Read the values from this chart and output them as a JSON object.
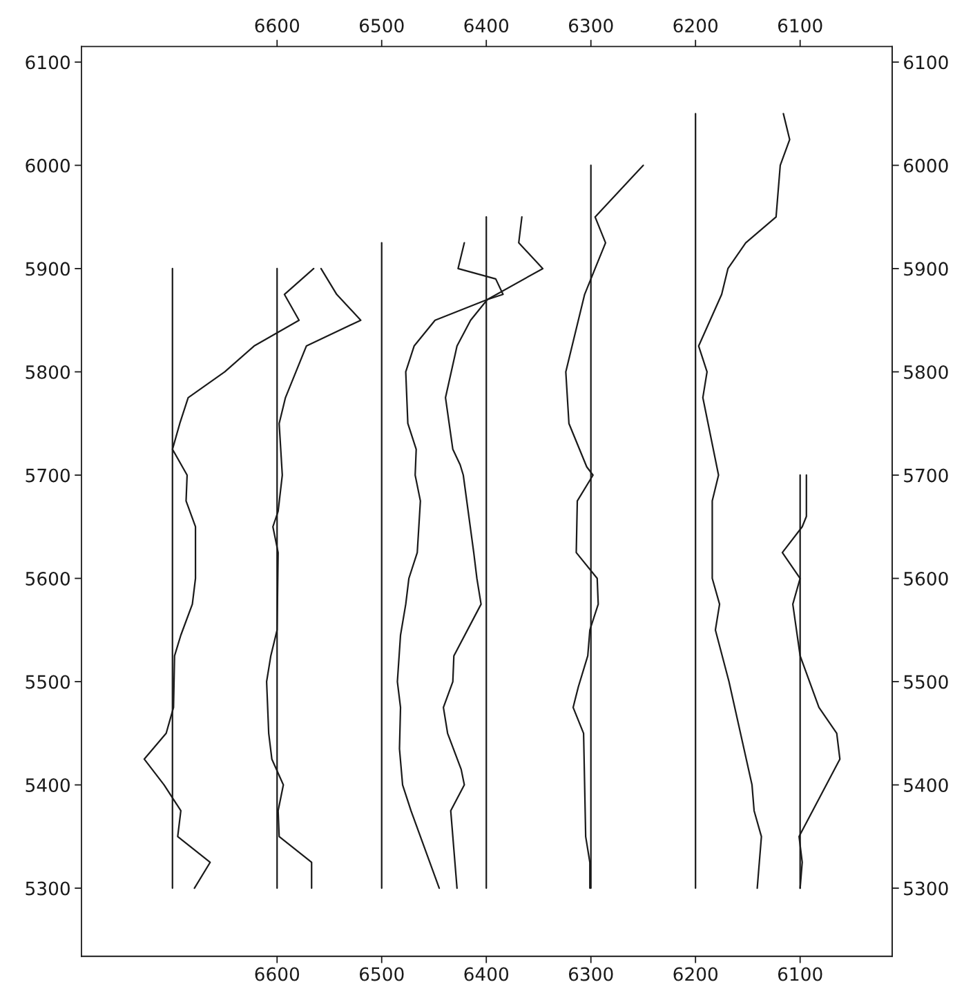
{
  "chart_data": {
    "type": "line",
    "orientation": "horizontal",
    "xlim": [
      6787,
      6012
    ],
    "xticks": [
      6600,
      6500,
      6400,
      6300,
      6200,
      6100
    ],
    "x2lim": [
      6787,
      6012
    ],
    "x2ticks": [
      6600,
      6500,
      6400,
      6300,
      6200,
      6100
    ],
    "ylim": [
      5234,
      6115
    ],
    "yticks": [
      5300,
      5400,
      5500,
      5600,
      5700,
      5800,
      5900,
      6000,
      6100
    ],
    "y2lim": [
      5234,
      6115
    ],
    "y2ticks": [
      5300,
      5400,
      5500,
      5600,
      5700,
      5800,
      5900,
      6000,
      6100
    ],
    "grid": false,
    "marker": "none",
    "line_style": "solid",
    "series": [
      {
        "color": "#1a1a1a",
        "values": [
          6700,
          6700
        ],
        "x": [
          5300,
          5900
        ]
      },
      {
        "color": "#1a1a1a",
        "values": [
          6600,
          6600
        ],
        "x": [
          5300,
          5900
        ]
      },
      {
        "color": "#1a1a1a",
        "values": [
          6500,
          6500
        ],
        "x": [
          5300,
          5925
        ]
      },
      {
        "color": "#1a1a1a",
        "values": [
          6400,
          6400
        ],
        "x": [
          5300,
          5950
        ]
      },
      {
        "color": "#1a1a1a",
        "values": [
          6300,
          6300
        ],
        "x": [
          5300,
          6000
        ]
      },
      {
        "color": "#1a1a1a",
        "values": [
          6200,
          6200
        ],
        "x": [
          5300,
          6050
        ]
      },
      {
        "color": "#1a1a1a",
        "values": [
          6100,
          6100
        ],
        "x": [
          5300,
          5700
        ]
      },
      {
        "color": "#1a1a1a",
        "values": [
          6679,
          6664,
          6695,
          6692,
          6708,
          6727,
          6706,
          6699,
          6698,
          6692,
          6681,
          6678,
          6678,
          6687,
          6686,
          6700,
          6693,
          6685,
          6650,
          6622,
          6579,
          6593,
          6565
        ],
        "x": [
          5300,
          5325,
          5350,
          5375,
          5400,
          5425,
          5450,
          5475,
          5525,
          5545,
          5575,
          5600,
          5650,
          5675,
          5700,
          5725,
          5750,
          5775,
          5800,
          5825,
          5850,
          5875,
          5900
        ]
      },
      {
        "color": "#1a1a1a",
        "values": [
          6567,
          6567,
          6598,
          6599,
          6594,
          6605,
          6608,
          6610,
          6606,
          6600,
          6599,
          6604,
          6599,
          6595,
          6598,
          6592,
          6572,
          6520,
          6543,
          6558
        ],
        "x": [
          5300,
          5325,
          5350,
          5375,
          5400,
          5425,
          5450,
          5500,
          5525,
          5550,
          5625,
          5650,
          5665,
          5700,
          5750,
          5775,
          5825,
          5850,
          5875,
          5900
        ]
      },
      {
        "color": "#1a1a1a",
        "values": [
          6445,
          6472,
          6480,
          6483,
          6482,
          6485,
          6482,
          6477,
          6474,
          6466,
          6463,
          6468,
          6467,
          6475,
          6477,
          6469,
          6449,
          6399,
          6346,
          6369,
          6366
        ],
        "x": [
          5300,
          5375,
          5400,
          5435,
          5475,
          5500,
          5545,
          5575,
          5600,
          5625,
          5675,
          5700,
          5725,
          5750,
          5800,
          5825,
          5850,
          5870,
          5900,
          5925,
          5950
        ]
      },
      {
        "color": "#1a1a1a",
        "values": [
          6428,
          6434,
          6421,
          6424,
          6437,
          6441,
          6432,
          6431,
          6405,
          6409,
          6412,
          6422,
          6425,
          6432,
          6439,
          6428,
          6415,
          6399,
          6384,
          6391,
          6427,
          6421
        ],
        "x": [
          5300,
          5375,
          5400,
          5415,
          5450,
          5475,
          5500,
          5525,
          5575,
          5600,
          5625,
          5700,
          5710,
          5725,
          5775,
          5825,
          5850,
          5870,
          5875,
          5890,
          5900,
          5925
        ]
      },
      {
        "color": "#1a1a1a",
        "values": [
          6301,
          6301,
          6305,
          6307,
          6317,
          6312,
          6303,
          6301,
          6293,
          6294,
          6314,
          6313,
          6298,
          6304,
          6321,
          6324,
          6306,
          6296,
          6286,
          6296,
          6250
        ],
        "x": [
          5300,
          5325,
          5350,
          5450,
          5475,
          5495,
          5525,
          5550,
          5575,
          5600,
          5625,
          5675,
          5700,
          5708,
          5750,
          5800,
          5875,
          5900,
          5925,
          5950,
          6000
        ]
      },
      {
        "color": "#1a1a1a",
        "values": [
          6141,
          6137,
          6144,
          6146,
          6168,
          6181,
          6177,
          6184,
          6184,
          6178,
          6193,
          6189,
          6197,
          6175,
          6169,
          6152,
          6123,
          6119,
          6110,
          6116
        ],
        "x": [
          5300,
          5350,
          5375,
          5400,
          5500,
          5550,
          5575,
          5600,
          5675,
          5700,
          5775,
          5800,
          5825,
          5875,
          5900,
          5925,
          5950,
          6000,
          6025,
          6050
        ]
      },
      {
        "color": "#1a1a1a",
        "values": [
          6100,
          6098,
          6101,
          6062,
          6065,
          6082,
          6100,
          6107,
          6100,
          6117,
          6098,
          6094,
          6094
        ],
        "x": [
          5300,
          5325,
          5350,
          5425,
          5450,
          5475,
          5525,
          5575,
          5600,
          5625,
          5650,
          5660,
          5700
        ]
      }
    ]
  }
}
